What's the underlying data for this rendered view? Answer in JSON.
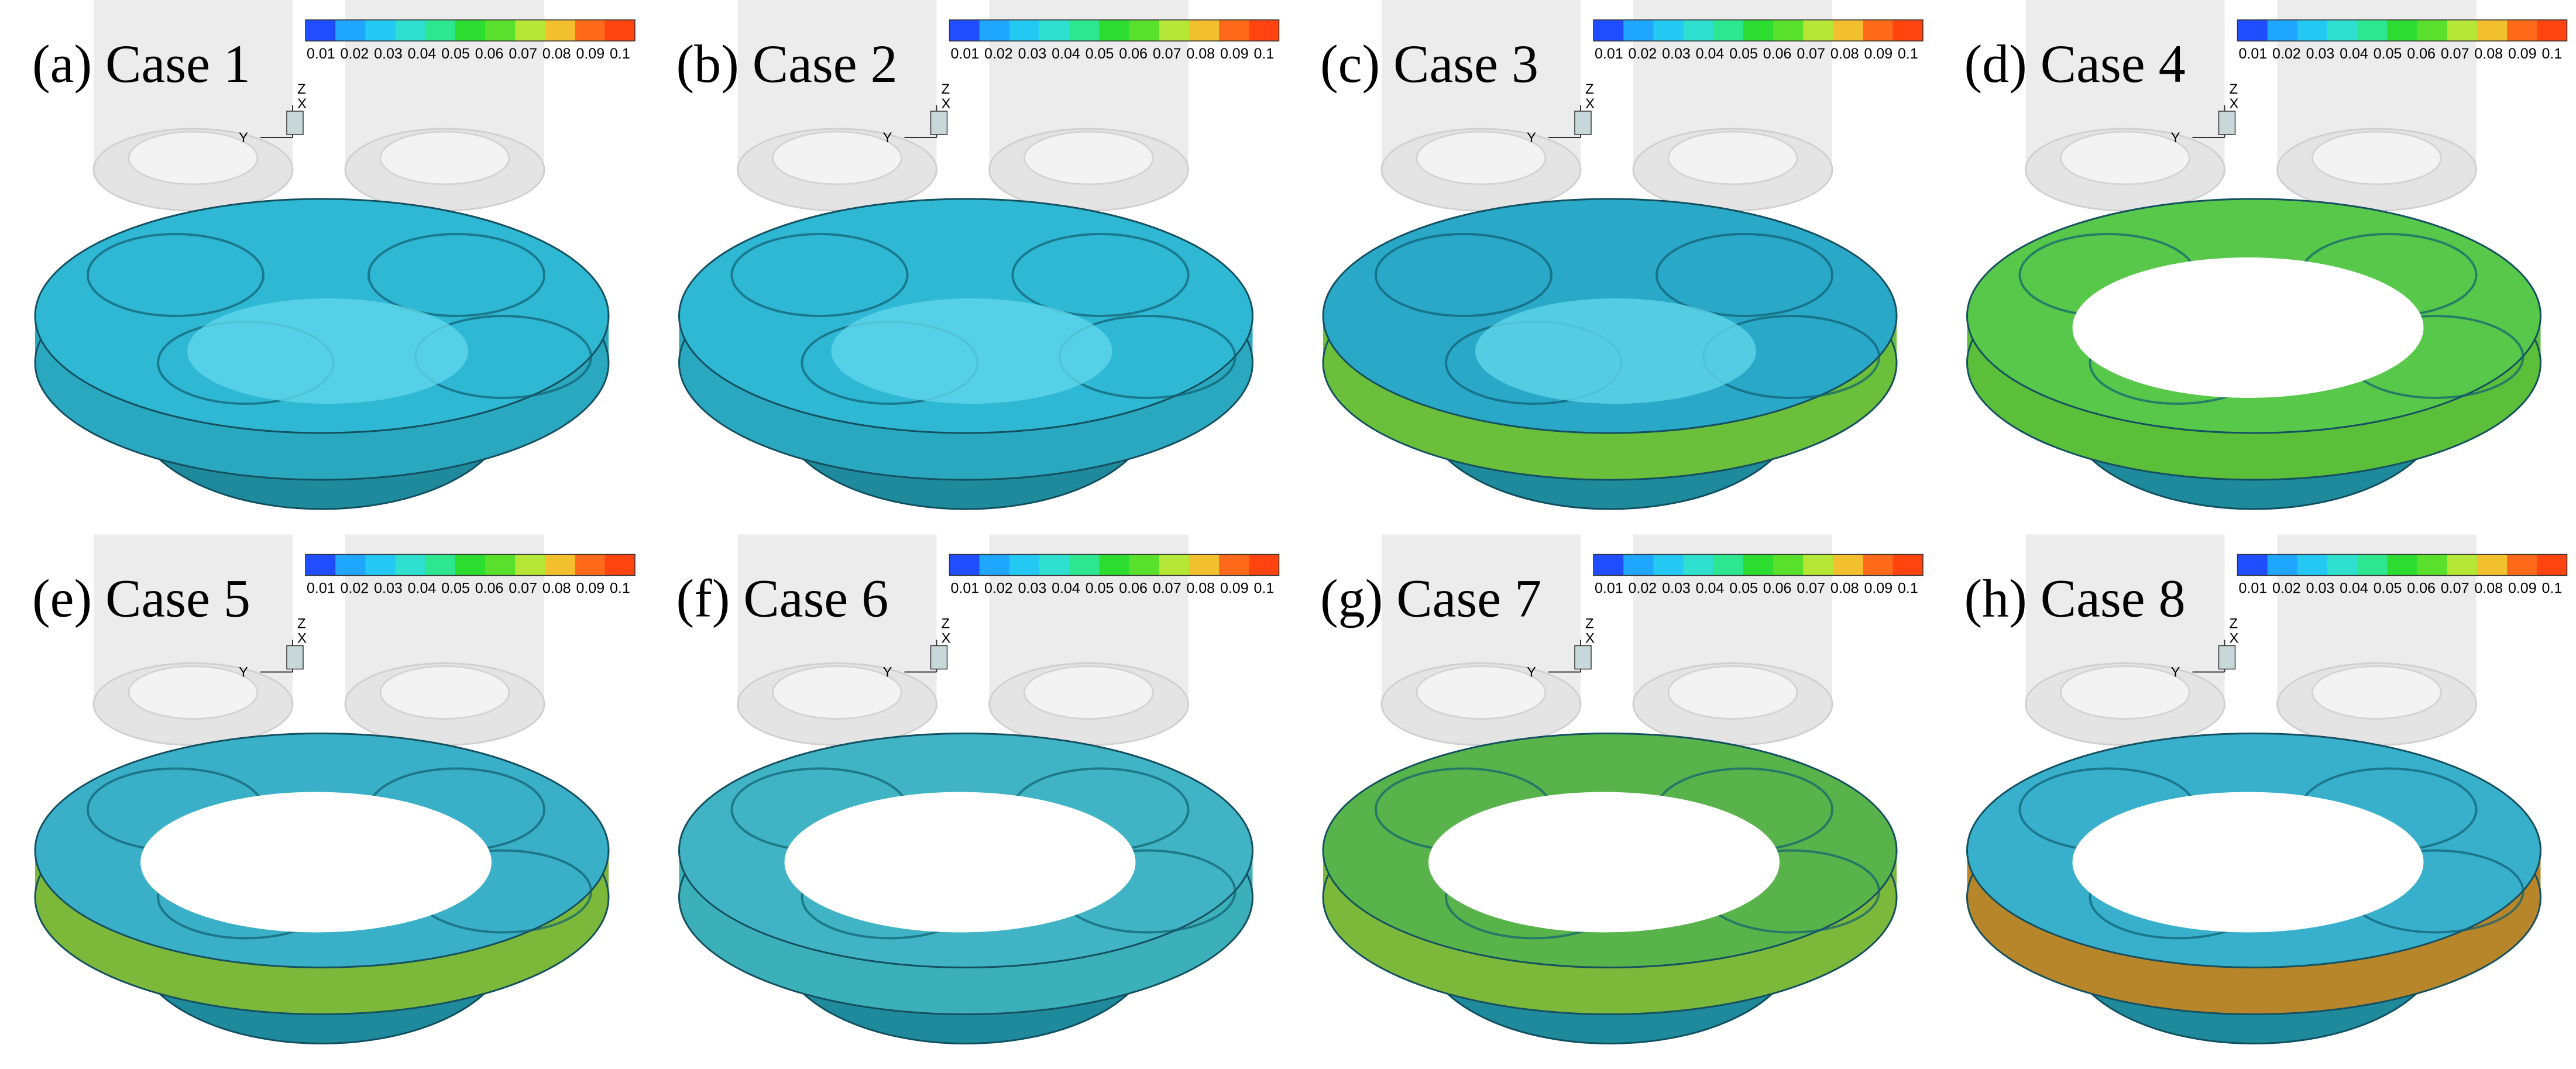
{
  "panels": [
    {
      "label": "(a) Case 1"
    },
    {
      "label": "(b) Case 2"
    },
    {
      "label": "(c) Case 3"
    },
    {
      "label": "(d) Case 4"
    },
    {
      "label": "(e) Case 5"
    },
    {
      "label": "(f) Case 6"
    },
    {
      "label": "(g) Case 7"
    },
    {
      "label": "(h) Case 8"
    }
  ],
  "colorbar": {
    "labels": [
      "0.01",
      "0.02",
      "0.03",
      "0.04",
      "0.05",
      "0.06",
      "0.07",
      "0.08",
      "0.09",
      "0.1"
    ],
    "colors": [
      "#1f4dff",
      "#1fa6ff",
      "#24c8f2",
      "#2fe0d0",
      "#2fe690",
      "#2cdc30",
      "#58e02c",
      "#b6e636",
      "#f2c02e",
      "#ff6a1a",
      "#ff4410"
    ]
  },
  "triad": {
    "z": "Z",
    "x": "X",
    "y": "Y"
  }
}
